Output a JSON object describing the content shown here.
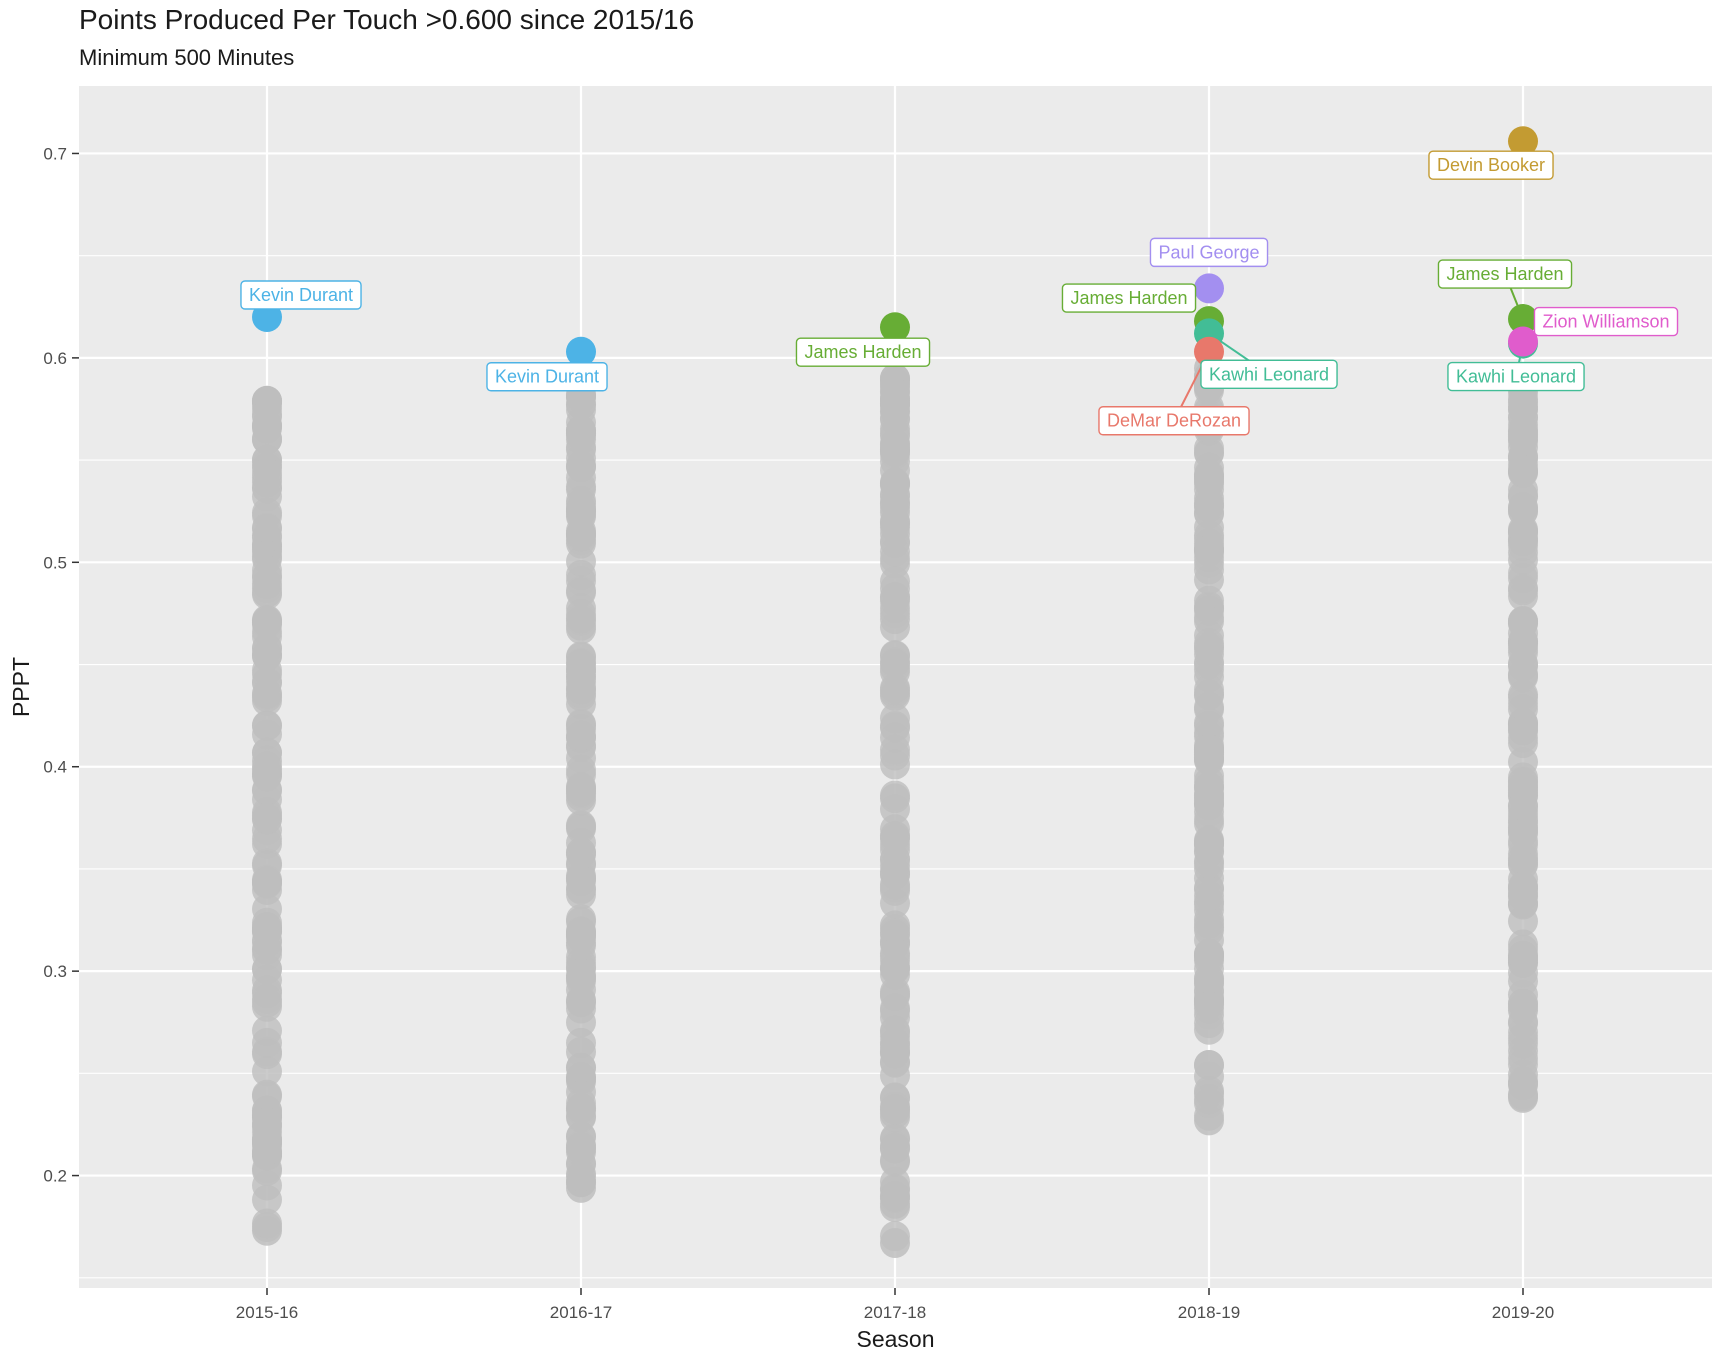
{
  "chart_data": {
    "type": "scatter",
    "title": "Points Produced Per Touch >0.600 since 2015/16",
    "subtitle": "Minimum 500 Minutes",
    "xlabel": "Season",
    "ylabel": "PPPT",
    "categories": [
      "2015-16",
      "2016-17",
      "2017-18",
      "2018-19",
      "2019-20"
    ],
    "ylim": [
      0.145,
      0.733
    ],
    "yticks": [
      0.2,
      0.3,
      0.4,
      0.5,
      0.6,
      0.7
    ],
    "grid": true,
    "background_color": "#ebebeb",
    "default_point_color": "#bebebe",
    "highlighted": [
      {
        "name": "Kevin Durant",
        "season": "2015-16",
        "y": 0.62,
        "color": "#4db3e6"
      },
      {
        "name": "Kevin Durant",
        "season": "2016-17",
        "y": 0.603,
        "color": "#4db3e6"
      },
      {
        "name": "James Harden",
        "season": "2017-18",
        "y": 0.615,
        "color": "#67ad35"
      },
      {
        "name": "Paul George",
        "season": "2018-19",
        "y": 0.634,
        "color": "#a38ff0"
      },
      {
        "name": "James Harden",
        "season": "2018-19",
        "y": 0.618,
        "color": "#67ad35"
      },
      {
        "name": "Kawhi Leonard",
        "season": "2018-19",
        "y": 0.612,
        "color": "#42bd96"
      },
      {
        "name": "DeMar DeRozan",
        "season": "2018-19",
        "y": 0.603,
        "color": "#e8786b"
      },
      {
        "name": "Devin Booker",
        "season": "2019-20",
        "y": 0.706,
        "color": "#c39b32"
      },
      {
        "name": "James Harden",
        "season": "2019-20",
        "y": 0.619,
        "color": "#67ad35"
      },
      {
        "name": "Kawhi Leonard",
        "season": "2019-20",
        "y": 0.607,
        "color": "#42bd96"
      },
      {
        "name": "Zion Williamson",
        "season": "2019-20",
        "y": 0.608,
        "color": "#e05ccc"
      }
    ],
    "others": {
      "2015-16": {
        "min": 0.173,
        "max": 0.579
      },
      "2016-17": {
        "min": 0.194,
        "max": 0.582
      },
      "2017-18": {
        "min": 0.167,
        "max": 0.59
      },
      "2018-19": {
        "min": 0.227,
        "max": 0.595
      },
      "2019-20": {
        "min": 0.238,
        "max": 0.59
      }
    }
  }
}
